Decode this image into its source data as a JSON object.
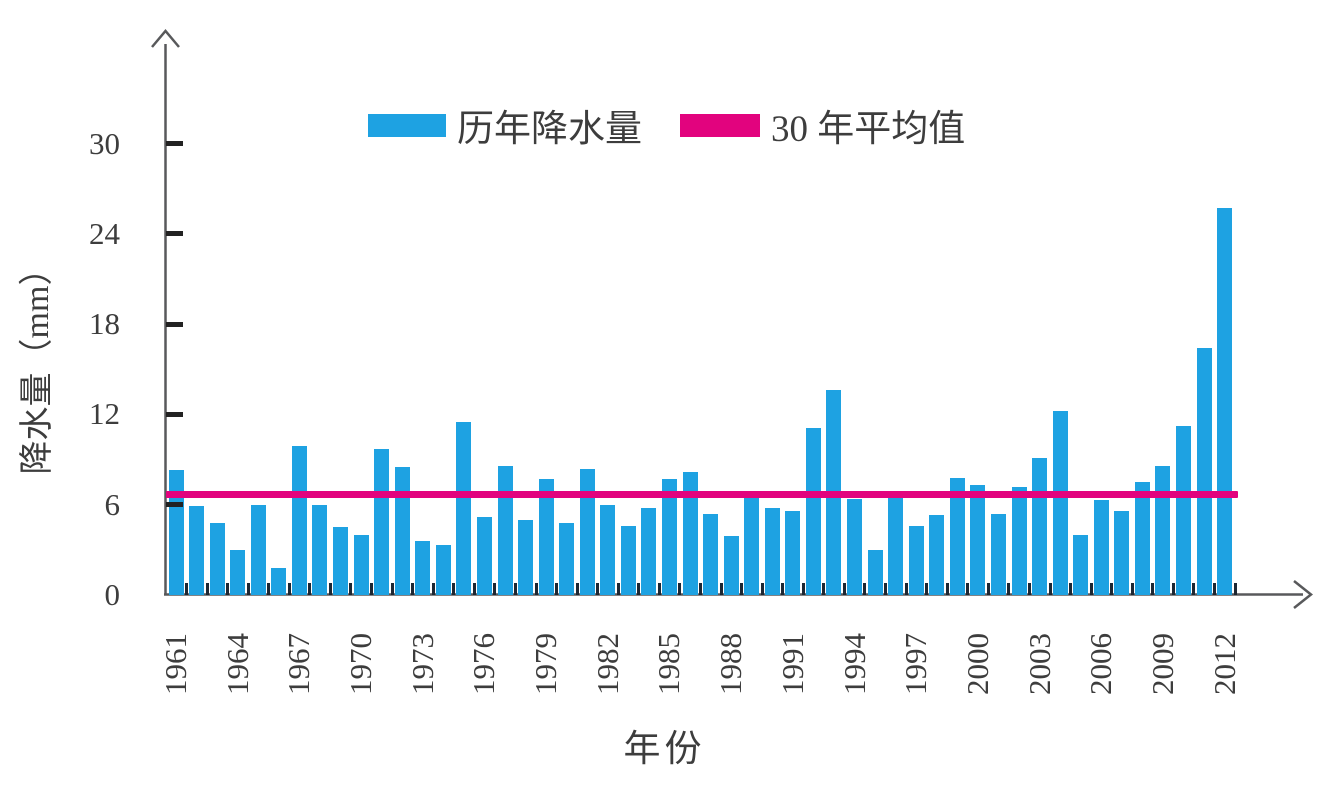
{
  "chart_data": {
    "type": "bar",
    "title": "",
    "xlabel": "年份",
    "ylabel": "降水量（mm）",
    "ylim": [
      0,
      32
    ],
    "yticks": [
      0,
      6,
      12,
      18,
      24,
      30
    ],
    "xticks": [
      "1961",
      "1964",
      "1967",
      "1970",
      "1973",
      "1976",
      "1979",
      "1982",
      "1985",
      "1988",
      "1991",
      "1994",
      "1997",
      "2000",
      "2003",
      "2006",
      "2009",
      "2012"
    ],
    "x_tick_interval_years": 3,
    "years": [
      1961,
      1962,
      1963,
      1964,
      1965,
      1966,
      1967,
      1968,
      1969,
      1970,
      1971,
      1972,
      1973,
      1974,
      1975,
      1976,
      1977,
      1978,
      1979,
      1980,
      1981,
      1982,
      1983,
      1984,
      1985,
      1986,
      1987,
      1988,
      1989,
      1990,
      1991,
      1992,
      1993,
      1994,
      1995,
      1996,
      1997,
      1998,
      1999,
      2000,
      2001,
      2002,
      2003,
      2004,
      2005,
      2006,
      2007,
      2008,
      2009,
      2010,
      2011,
      2012
    ],
    "values": [
      8.3,
      5.9,
      4.8,
      3.0,
      6.0,
      1.8,
      9.9,
      6.0,
      4.5,
      4.0,
      9.7,
      8.5,
      3.6,
      3.3,
      11.5,
      5.2,
      8.6,
      5.0,
      7.7,
      4.8,
      8.4,
      6.0,
      4.6,
      5.8,
      7.7,
      8.2,
      5.4,
      3.9,
      6.5,
      5.8,
      5.6,
      11.1,
      13.6,
      6.4,
      3.0,
      6.5,
      4.6,
      5.3,
      7.8,
      7.3,
      5.4,
      7.2,
      9.1,
      12.2,
      4.0,
      6.3,
      5.6,
      7.5,
      8.6,
      11.2,
      16.4,
      25.7
    ],
    "average_line": {
      "label": "30 年平均值",
      "value": 6.7
    },
    "legend": [
      {
        "label": "历年降水量",
        "type": "bar",
        "color": "#1EA2E2"
      },
      {
        "label": "30 年平均值",
        "type": "line",
        "color": "#E2037E"
      }
    ],
    "colors": {
      "bar": "#1EA2E2",
      "line": "#E2037E",
      "axis": "#58595B",
      "text": "#3D3D3D"
    },
    "grid": false,
    "legend_position": "top-center"
  }
}
